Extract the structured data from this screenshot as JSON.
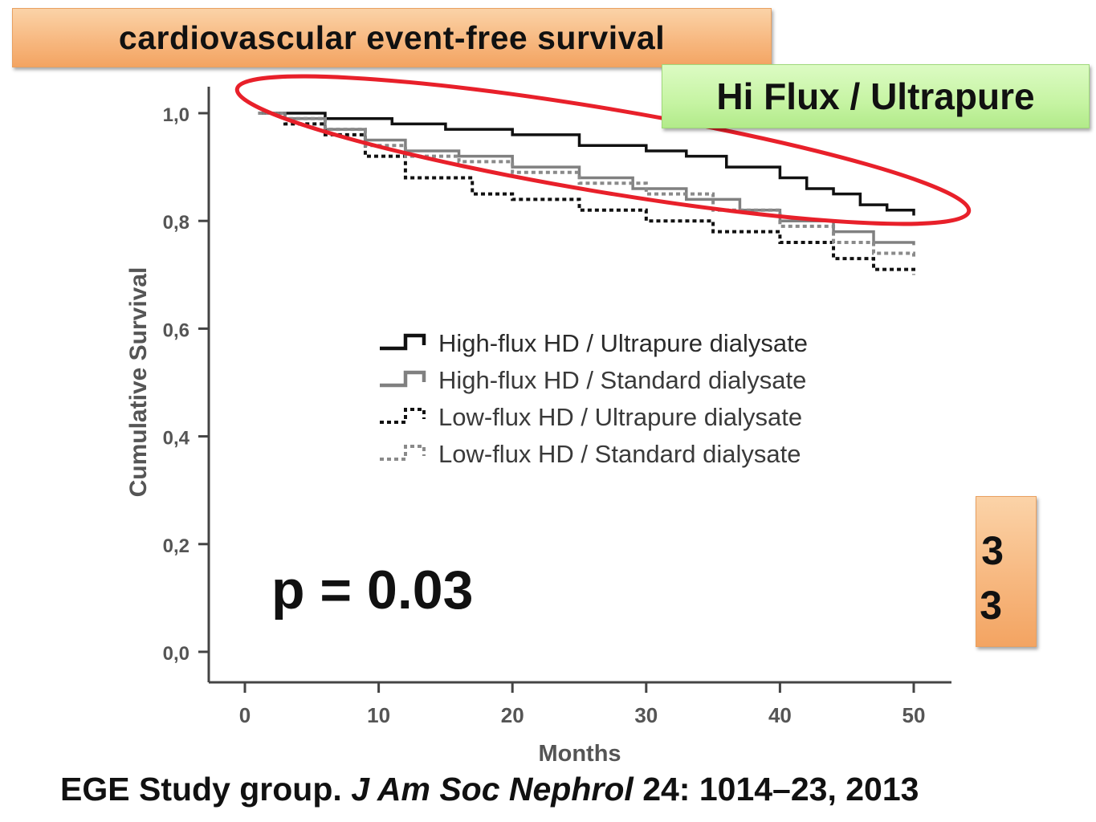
{
  "banner": {
    "title": "cardiovascular event-free survival"
  },
  "highlight": {
    "label": "Hi Flux / Ultrapure",
    "ellipse_color": "#e8202a"
  },
  "pvalue": "p = 0.03",
  "orange_box": {
    "line1": "3",
    "line2": "3"
  },
  "citation": {
    "authors": "EGE Study group. ",
    "journal": "J Am Soc Nephrol",
    "rest": " 24: 1014–23, 2013"
  },
  "chart_data": {
    "type": "line",
    "subtype": "kaplan-meier",
    "title": "",
    "xlabel": "Months",
    "ylabel": "Cumulative Survival",
    "xlim": [
      0,
      50
    ],
    "ylim": [
      0,
      1
    ],
    "xticks": [
      0,
      10,
      20,
      30,
      40,
      50
    ],
    "xtick_labels": [
      "0",
      "10",
      "20",
      "30",
      "40",
      "50"
    ],
    "yticks": [
      0,
      0.2,
      0.4,
      0.6,
      0.8,
      1.0
    ],
    "ytick_labels": [
      "0,0",
      "0,2",
      "0,4",
      "0,6",
      "0,8",
      "1,0"
    ],
    "grid": false,
    "legend_position": "center-right",
    "series": [
      {
        "name": "High-flux HD / Ultrapure dialysate",
        "color": "#111111",
        "style": "solid",
        "x": [
          1,
          6,
          11,
          15,
          20,
          25,
          30,
          33,
          36,
          40,
          42,
          44,
          46,
          48,
          50
        ],
        "y": [
          1.0,
          0.99,
          0.98,
          0.97,
          0.96,
          0.94,
          0.93,
          0.92,
          0.9,
          0.88,
          0.86,
          0.85,
          0.83,
          0.82,
          0.81
        ]
      },
      {
        "name": "High-flux HD / Standard dialysate",
        "color": "#808080",
        "style": "solid",
        "x": [
          1,
          3,
          6,
          9,
          12,
          16,
          20,
          25,
          29,
          33,
          37,
          40,
          44,
          47,
          50
        ],
        "y": [
          1.0,
          0.99,
          0.97,
          0.95,
          0.93,
          0.92,
          0.9,
          0.88,
          0.86,
          0.84,
          0.82,
          0.8,
          0.78,
          0.76,
          0.755
        ]
      },
      {
        "name": "Low-flux HD / Ultrapure dialysate",
        "color": "#111111",
        "style": "dotted",
        "x": [
          1,
          3,
          6,
          9,
          12,
          17,
          20,
          25,
          30,
          35,
          40,
          44,
          47,
          50
        ],
        "y": [
          1.0,
          0.98,
          0.96,
          0.92,
          0.88,
          0.85,
          0.84,
          0.82,
          0.8,
          0.78,
          0.76,
          0.73,
          0.71,
          0.7
        ]
      },
      {
        "name": "Low-flux HD / Standard dialysate",
        "color": "#8a8a8a",
        "style": "dotted",
        "x": [
          1,
          3,
          6,
          9,
          12,
          16,
          20,
          25,
          30,
          35,
          40,
          44,
          47,
          50
        ],
        "y": [
          1.0,
          0.99,
          0.97,
          0.94,
          0.92,
          0.91,
          0.89,
          0.87,
          0.85,
          0.82,
          0.79,
          0.76,
          0.74,
          0.73
        ]
      }
    ]
  }
}
